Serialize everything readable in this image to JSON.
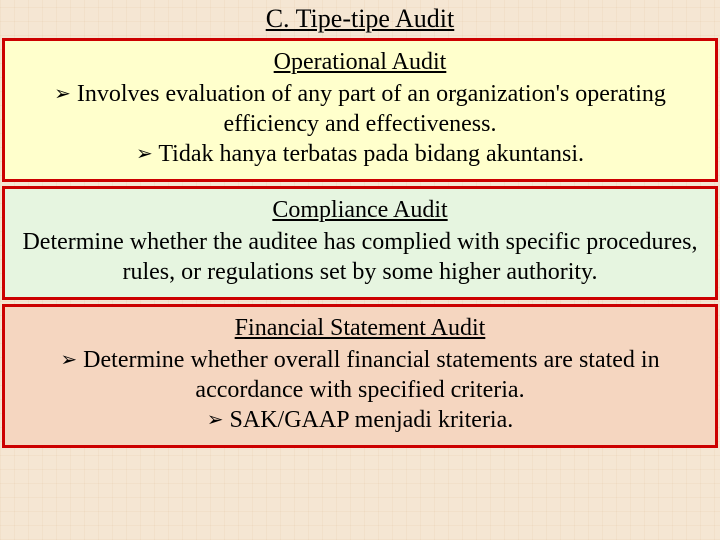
{
  "title": "C. Tipe-tipe Audit",
  "boxes": {
    "operational": {
      "heading": "Operational Audit",
      "lines": [
        "Involves evaluation of any part of an organization's operating efficiency and effectiveness.",
        "Tidak hanya terbatas pada bidang akuntansi."
      ],
      "bg": "#ffffcc",
      "border": "#cc0000"
    },
    "compliance": {
      "heading": "Compliance Audit",
      "body": "Determine whether the auditee has complied with specific procedures, rules, or regulations set by some higher authority.",
      "bg": "#e6f5e0",
      "border": "#cc0000"
    },
    "financial": {
      "heading": "Financial Statement Audit",
      "lines": [
        "Determine whether overall financial statements are stated in accordance with specified criteria.",
        "SAK/GAAP menjadi kriteria."
      ],
      "bg": "#f5d6c0",
      "border": "#cc0000"
    }
  },
  "bullet_glyph": "➢",
  "page_bg": "#f5e6d3",
  "font_family": "Times New Roman",
  "title_fontsize": 26,
  "body_fontsize": 24
}
